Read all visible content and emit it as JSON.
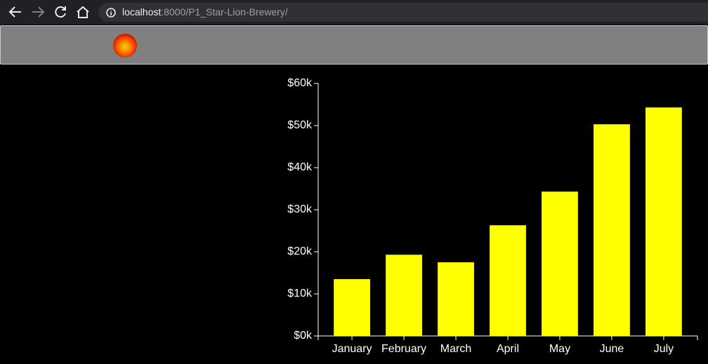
{
  "browser": {
    "url_host": "localhost",
    "url_path": ":8000/P1_Star-Lion-Brewery/"
  },
  "chart_data": {
    "type": "bar",
    "categories": [
      "January",
      "February",
      "March",
      "April",
      "May",
      "June",
      "July"
    ],
    "values": [
      13500,
      19300,
      17500,
      26300,
      34300,
      50300,
      54300
    ],
    "color": "#ffff00",
    "ylim": [
      0,
      60000
    ],
    "yticks": [
      {
        "value": 0,
        "label": "$0k"
      },
      {
        "value": 10000,
        "label": "$10k"
      },
      {
        "value": 20000,
        "label": "$20k"
      },
      {
        "value": 30000,
        "label": "$30k"
      },
      {
        "value": 40000,
        "label": "$40k"
      },
      {
        "value": 50000,
        "label": "$50k"
      },
      {
        "value": 60000,
        "label": "$60k"
      }
    ],
    "grid": false
  }
}
